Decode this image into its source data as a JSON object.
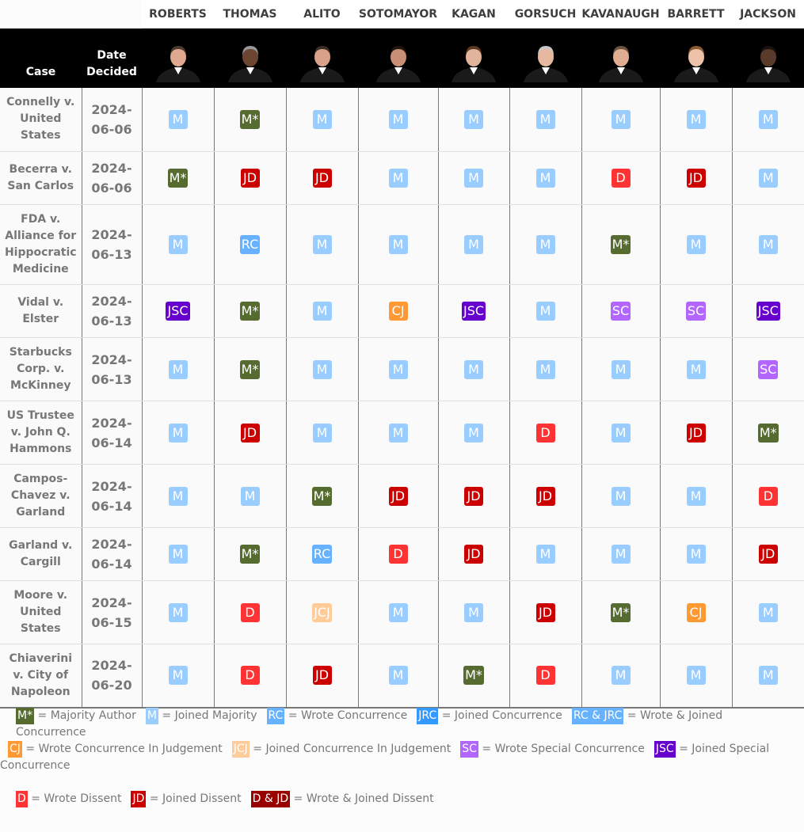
{
  "header": {
    "case_label": "Case",
    "date_label": "Date Decided"
  },
  "justices": [
    "ROBERTS",
    "THOMAS",
    "ALITO",
    "SOTOMAYOR",
    "KAGAN",
    "GORSUCH",
    "KAVANAUGH",
    "BARRETT",
    "JACKSON"
  ],
  "colors": {
    "M*": "#556b2f",
    "M": "#99ccff",
    "RC": "#66b2ff",
    "JRC": "#3399ff",
    "RC & JRC": "#66b2ff",
    "CJ": "#ff9933",
    "JCJ": "#ffcc99",
    "SC": "#b266ff",
    "JSC": "#6600cc",
    "D": "#ff3333",
    "JD": "#cc0000",
    "D & JD": "#990000"
  },
  "cases": [
    {
      "name": "Connelly v. United States",
      "date": "2024-06-06",
      "votes": [
        "M",
        "M*",
        "M",
        "M",
        "M",
        "M",
        "M",
        "M",
        "M"
      ]
    },
    {
      "name": "Becerra v. San Carlos",
      "date": "2024-06-06",
      "votes": [
        "M*",
        "JD",
        "JD",
        "M",
        "M",
        "M",
        "D",
        "JD",
        "M"
      ]
    },
    {
      "name": "FDA v. Alliance for Hippocratic Medicine",
      "date": "2024-06-13",
      "votes": [
        "M",
        "RC",
        "M",
        "M",
        "M",
        "M",
        "M*",
        "M",
        "M"
      ]
    },
    {
      "name": "Vidal v. Elster",
      "date": "2024-06-13",
      "votes": [
        "JSC",
        "M*",
        "M",
        "CJ",
        "JSC",
        "M",
        "SC",
        "SC",
        "JSC"
      ]
    },
    {
      "name": "Starbucks Corp. v. McKinney",
      "date": "2024-06-13",
      "votes": [
        "M",
        "M*",
        "M",
        "M",
        "M",
        "M",
        "M",
        "M",
        "SC"
      ]
    },
    {
      "name": "US Trustee v. John Q. Hammons",
      "date": "2024-06-14",
      "votes": [
        "M",
        "JD",
        "M",
        "M",
        "M",
        "D",
        "M",
        "JD",
        "M*"
      ]
    },
    {
      "name": "Campos-Chavez v. Garland",
      "date": "2024-06-14",
      "votes": [
        "M",
        "M",
        "M*",
        "JD",
        "JD",
        "JD",
        "M",
        "M",
        "D"
      ]
    },
    {
      "name": "Garland v. Cargill",
      "date": "2024-06-14",
      "votes": [
        "M",
        "M*",
        "RC",
        "D",
        "JD",
        "M",
        "M",
        "M",
        "JD"
      ]
    },
    {
      "name": "Moore v. United States",
      "date": "2024-06-15",
      "votes": [
        "M",
        "D",
        "JCJ",
        "M",
        "M",
        "JD",
        "M*",
        "CJ",
        "M"
      ]
    },
    {
      "name": "Chiaverini v. City of Napoleon",
      "date": "2024-06-20",
      "votes": [
        "M",
        "D",
        "JD",
        "M",
        "M*",
        "D",
        "M",
        "M",
        "M"
      ]
    }
  ],
  "legend": [
    [
      {
        "code": "M*",
        "text": "= Majority Author"
      },
      {
        "code": "M",
        "text": "= Joined Majority"
      },
      {
        "code": "RC",
        "text": "= Wrote Concurrence"
      },
      {
        "code": "JRC",
        "text": "= Joined Concurrence"
      },
      {
        "code": "RC & JRC",
        "text": "= Wrote & Joined Concurrence"
      }
    ],
    [
      {
        "code": "CJ",
        "text": "= Wrote Concurrence In Judgement"
      },
      {
        "code": "JCJ",
        "text": "= Joined Concurrence In Judgement"
      },
      {
        "code": "SC",
        "text": "= Wrote Special Concurrence"
      },
      {
        "code": "JSC",
        "text": "= Joined Special Concurrence"
      }
    ],
    [
      {
        "code": "D",
        "text": "= Wrote Dissent"
      },
      {
        "code": "JD",
        "text": "= Joined Dissent"
      },
      {
        "code": "D & JD",
        "text": "= Wrote & Joined Dissent"
      }
    ]
  ]
}
